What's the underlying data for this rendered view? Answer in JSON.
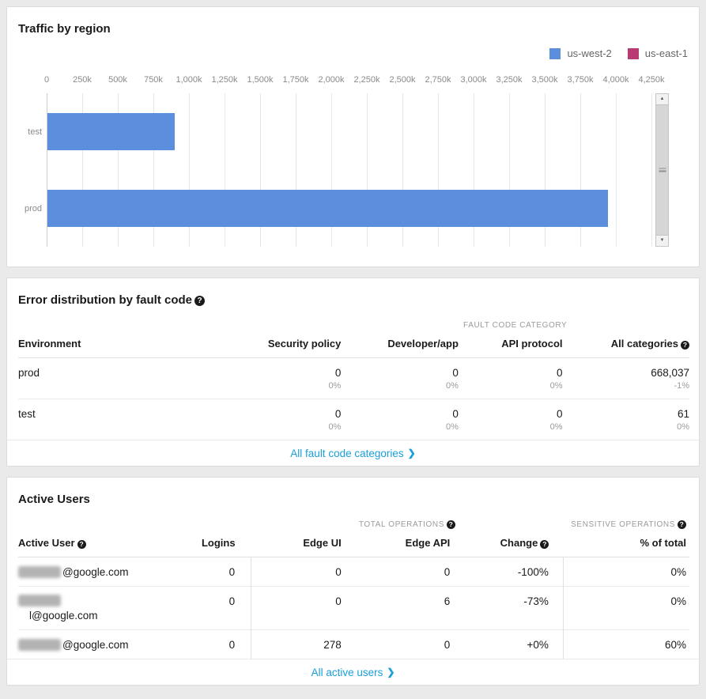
{
  "icons": {
    "help": "?",
    "chevron_right": "❯",
    "arrow_up": "▲",
    "arrow_down": "▼"
  },
  "colors": {
    "bar_blue": "#5b8edd",
    "series_crimson": "#b93a72",
    "link_blue": "#199fd9"
  },
  "traffic_card": {
    "title": "Traffic by region"
  },
  "chart_data": {
    "type": "bar",
    "orientation": "horizontal",
    "title": "Traffic by region",
    "categories": [
      "test",
      "prod"
    ],
    "series": [
      {
        "name": "us-west-2",
        "color": "#5b8edd",
        "values": [
          895000,
          3940000
        ]
      },
      {
        "name": "us-east-1",
        "color": "#b93a72",
        "values": [
          0,
          0
        ]
      }
    ],
    "x_ticks": [
      "0",
      "250k",
      "500k",
      "750k",
      "1,000k",
      "1,250k",
      "1,500k",
      "1,750k",
      "2,000k",
      "2,250k",
      "2,500k",
      "2,750k",
      "3,000k",
      "3,250k",
      "3,500k",
      "3,750k",
      "4,000k",
      "4,250k"
    ],
    "x_max_value": 4250000,
    "xlabel": "",
    "ylabel": "",
    "grid": true,
    "legend_position": "top-right"
  },
  "error_card": {
    "title": "Error distribution by fault code",
    "category_group_label": "FAULT CODE CATEGORY",
    "columns": {
      "environment": "Environment",
      "security_policy": "Security policy",
      "developer_app": "Developer/app",
      "api_protocol": "API protocol",
      "all_categories": "All categories"
    },
    "rows": [
      {
        "environment": "prod",
        "security_policy": "0",
        "security_policy_sub": "0%",
        "developer_app": "0",
        "developer_app_sub": "0%",
        "api_protocol": "0",
        "api_protocol_sub": "0%",
        "all_categories": "668,037",
        "all_categories_sub": "-1%"
      },
      {
        "environment": "test",
        "security_policy": "0",
        "security_policy_sub": "0%",
        "developer_app": "0",
        "developer_app_sub": "0%",
        "api_protocol": "0",
        "api_protocol_sub": "0%",
        "all_categories": "61",
        "all_categories_sub": "0%"
      }
    ],
    "footer_link": "All fault code categories"
  },
  "active_users_card": {
    "title": "Active Users",
    "group_labels": {
      "total_operations": "TOTAL OPERATIONS",
      "sensitive_operations": "SENSITIVE OPERATIONS"
    },
    "columns": {
      "active_user": "Active User",
      "logins": "Logins",
      "edge_ui": "Edge UI",
      "edge_api": "Edge API",
      "change": "Change",
      "percent_of_total": "% of total"
    },
    "rows": [
      {
        "user_visible": "@google.com",
        "user_redacted": true,
        "logins": "0",
        "edge_ui": "0",
        "edge_api": "0",
        "change": "-100%",
        "percent_of_total": "0%"
      },
      {
        "user_visible": "l@google.com",
        "user_redacted": true,
        "logins": "0",
        "edge_ui": "0",
        "edge_api": "6",
        "change": "-73%",
        "percent_of_total": "0%"
      },
      {
        "user_visible": "@google.com",
        "user_redacted": true,
        "logins": "0",
        "edge_ui": "278",
        "edge_api": "0",
        "change": "+0%",
        "percent_of_total": "60%"
      }
    ],
    "footer_link": "All active users"
  }
}
